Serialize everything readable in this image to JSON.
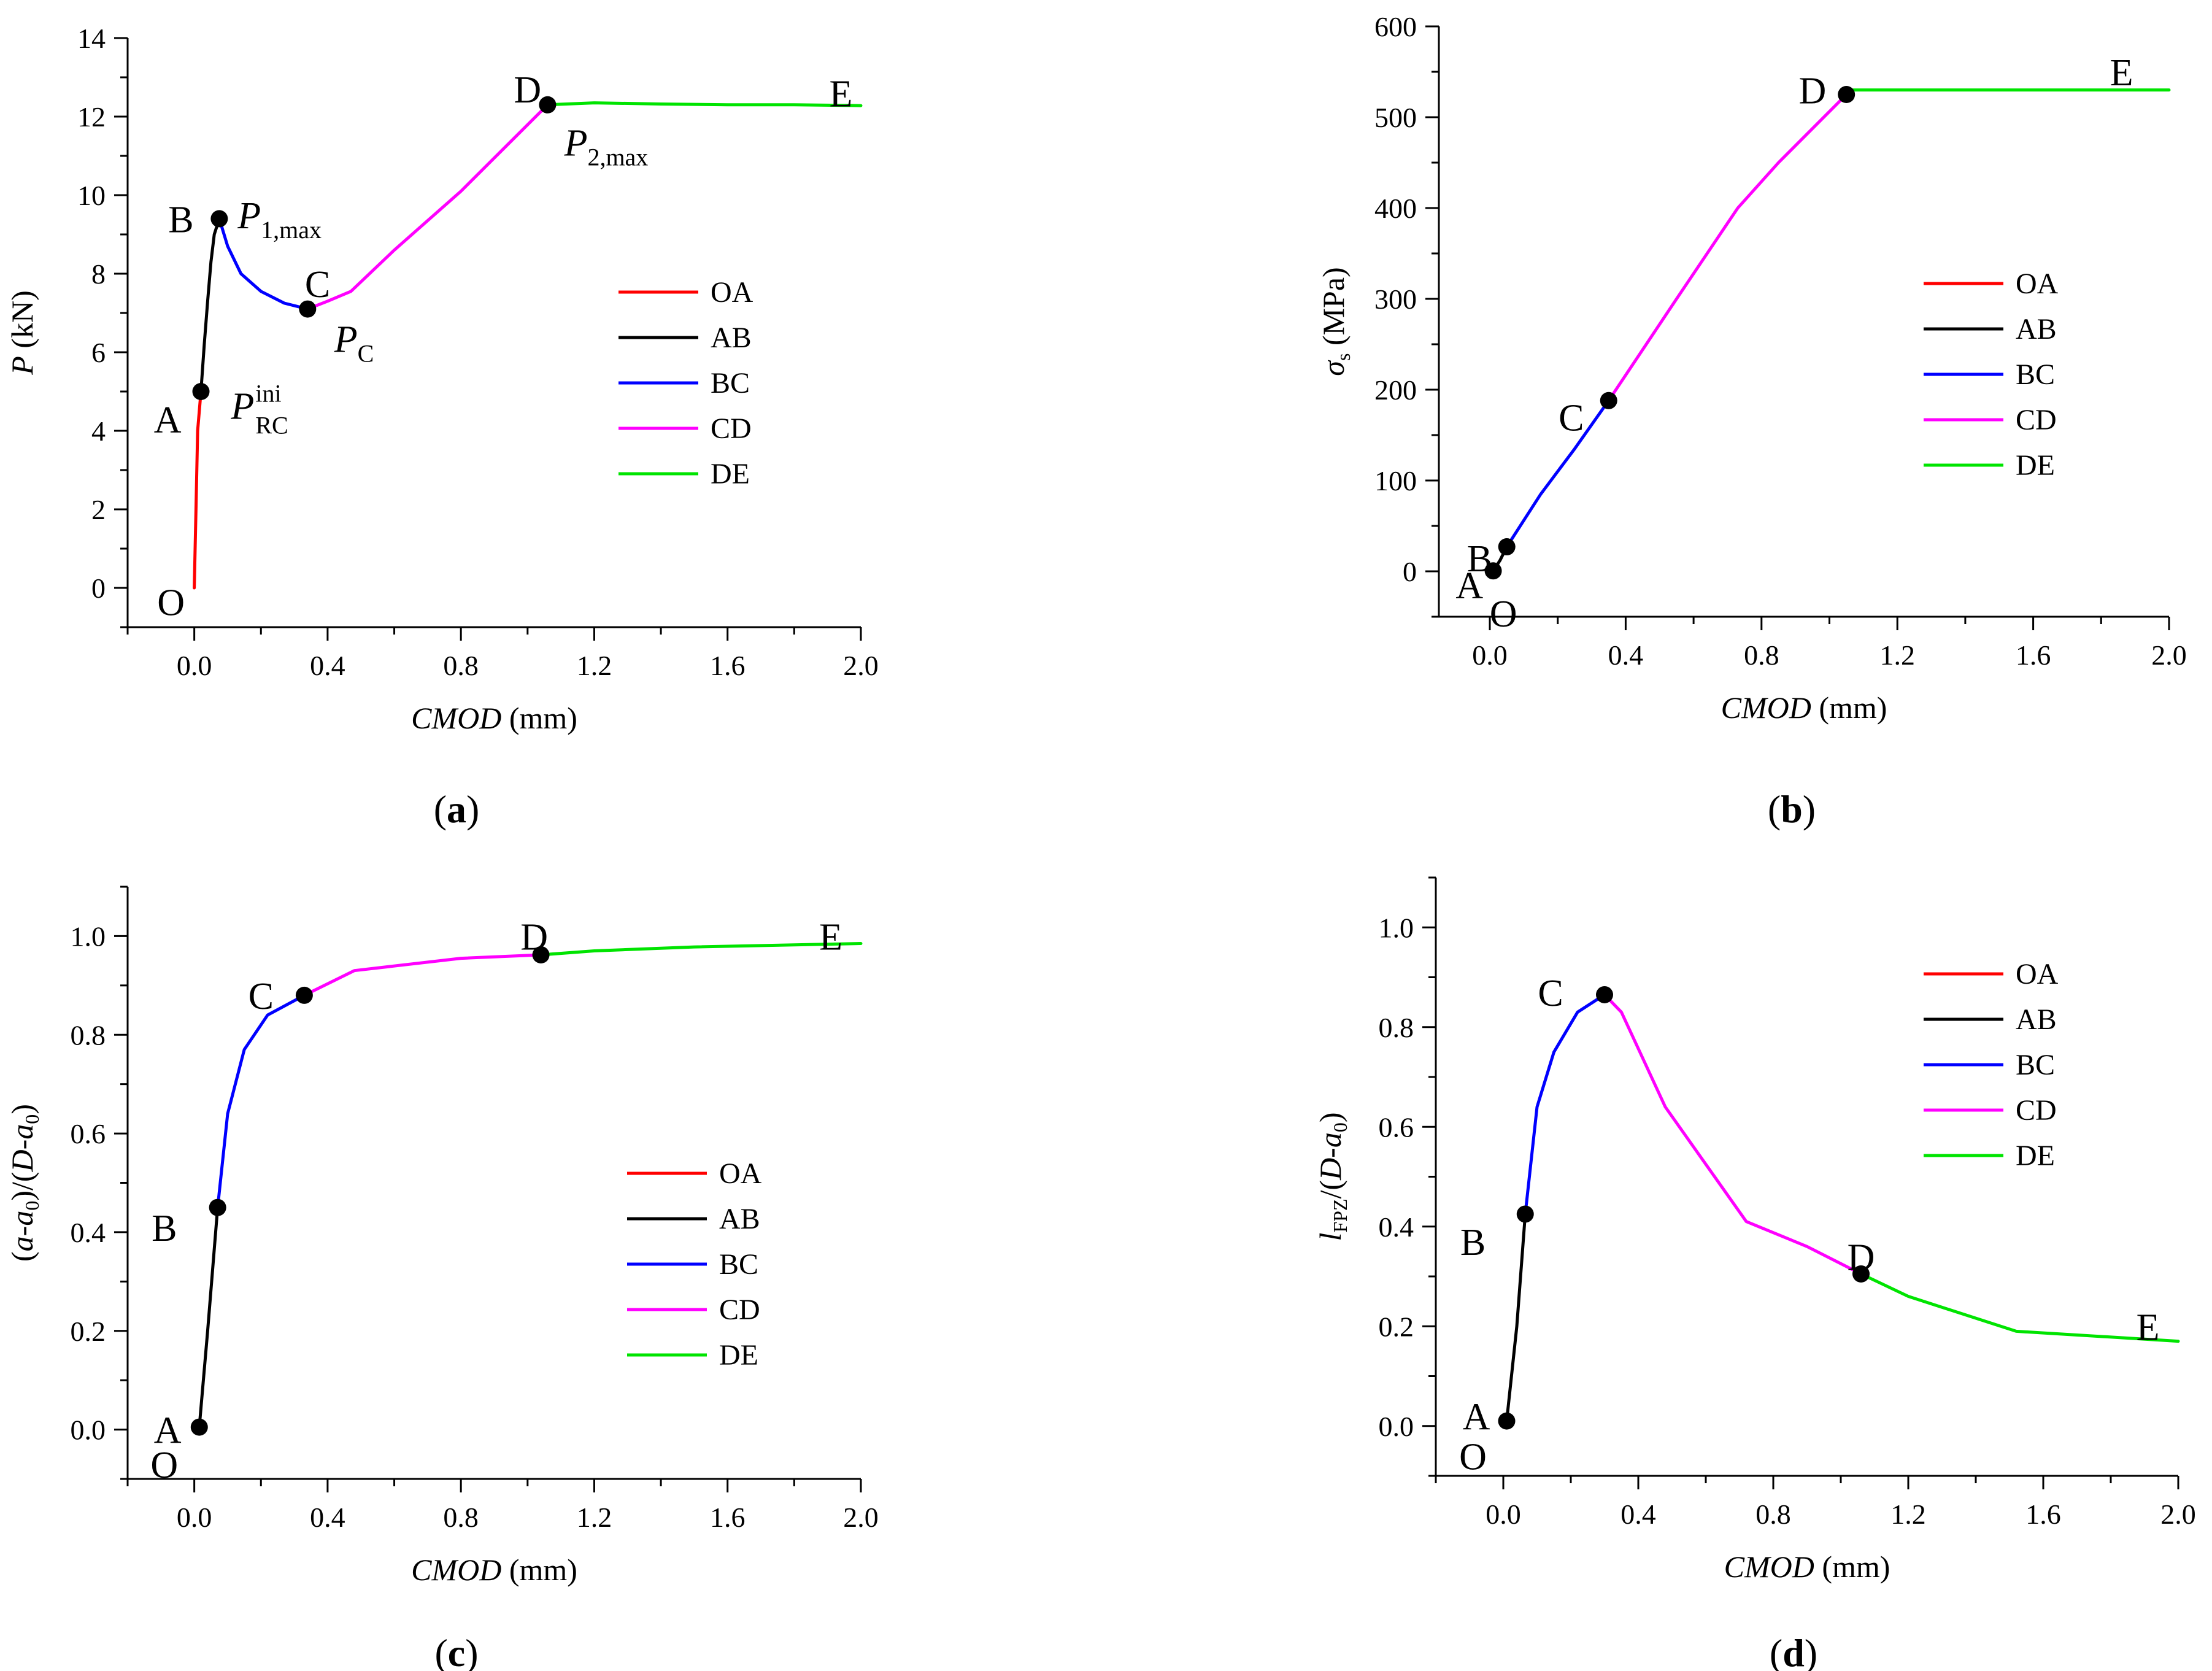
{
  "colors": {
    "OA": "#ff0000",
    "AB": "#000000",
    "BC": "#0000ff",
    "CD": "#ff00ff",
    "DE": "#00e400"
  },
  "chart_data": [
    {
      "type": "line",
      "caption_letter": "a",
      "xlabel_italic": "CMOD",
      "xlabel_unit": " (mm)",
      "ylabel_symbol": "P",
      "ylabel_unit": " (kN)",
      "xlim": [
        -0.2,
        2.0
      ],
      "ylim": [
        -1,
        14
      ],
      "xticks": [
        0.0,
        0.4,
        0.8,
        1.2,
        1.6,
        2.0
      ],
      "xtick_labels": [
        "0.0",
        "0.4",
        "0.8",
        "1.2",
        "1.6",
        "2.0"
      ],
      "yticks": [
        0,
        2,
        4,
        6,
        8,
        10,
        12,
        14
      ],
      "ytick_labels": [
        "0",
        "2",
        "4",
        "6",
        "8",
        "10",
        "12",
        "14"
      ],
      "legend": [
        "OA",
        "AB",
        "BC",
        "CD",
        "DE"
      ],
      "series": [
        {
          "name": "OA",
          "x": [
            0.0,
            0.005,
            0.01,
            0.02
          ],
          "y": [
            0.0,
            2.0,
            4.0,
            5.0
          ]
        },
        {
          "name": "AB",
          "x": [
            0.02,
            0.03,
            0.04,
            0.05,
            0.06,
            0.075
          ],
          "y": [
            5.0,
            6.2,
            7.3,
            8.3,
            9.0,
            9.4
          ]
        },
        {
          "name": "BC",
          "x": [
            0.075,
            0.1,
            0.14,
            0.2,
            0.27,
            0.34
          ],
          "y": [
            9.4,
            8.7,
            8.0,
            7.55,
            7.25,
            7.1
          ]
        },
        {
          "name": "CD",
          "x": [
            0.34,
            0.4,
            0.47,
            0.6,
            0.8,
            1.06
          ],
          "y": [
            7.1,
            7.3,
            7.55,
            8.6,
            10.1,
            12.3
          ]
        },
        {
          "name": "DE",
          "x": [
            1.06,
            1.2,
            1.4,
            1.6,
            1.8,
            2.0
          ],
          "y": [
            12.3,
            12.35,
            12.32,
            12.3,
            12.3,
            12.28
          ]
        }
      ],
      "markers": [
        {
          "name": "A",
          "x": 0.02,
          "y": 5.0
        },
        {
          "name": "B",
          "x": 0.075,
          "y": 9.4
        },
        {
          "name": "C",
          "x": 0.34,
          "y": 7.1
        },
        {
          "name": "D",
          "x": 1.06,
          "y": 12.3
        }
      ],
      "point_labels": [
        {
          "text": "O",
          "x": -0.07,
          "y": -0.35
        },
        {
          "text": "A",
          "x": -0.08,
          "y": 4.3
        },
        {
          "text": "B",
          "x": -0.04,
          "y": 9.4
        },
        {
          "text": "C",
          "x": 0.37,
          "y": 7.75
        },
        {
          "text": "D",
          "x": 1.0,
          "y": 12.7
        },
        {
          "text": "E",
          "x": 1.94,
          "y": 12.6
        }
      ],
      "annotations": [
        {
          "base": "P",
          "sub": "1,max",
          "x": 0.13,
          "y": 9.5
        },
        {
          "base": "P",
          "sub": "C",
          "x": 0.42,
          "y": 6.35
        },
        {
          "base": "P",
          "sub": "RC",
          "sup": "ini",
          "x": 0.11,
          "y": 4.65
        },
        {
          "base": "P",
          "sub": "2,max",
          "x": 1.11,
          "y": 11.35
        }
      ]
    },
    {
      "type": "line",
      "caption_letter": "b",
      "xlabel_italic": "CMOD",
      "xlabel_unit": " (mm)",
      "ylabel_symbol": "σ",
      "ylabel_sub": "s",
      "ylabel_unit": " (MPa)",
      "xlim": [
        -0.15,
        2.0
      ],
      "ylim": [
        -50,
        600
      ],
      "xticks": [
        0.0,
        0.4,
        0.8,
        1.2,
        1.6,
        2.0
      ],
      "xtick_labels": [
        "0.0",
        "0.4",
        "0.8",
        "1.2",
        "1.6",
        "2.0"
      ],
      "yticks": [
        0,
        100,
        200,
        300,
        400,
        500,
        600
      ],
      "ytick_labels": [
        "0",
        "100",
        "200",
        "300",
        "400",
        "500",
        "600"
      ],
      "legend": [
        "OA",
        "AB",
        "BC",
        "CD",
        "DE"
      ],
      "series": [
        {
          "name": "OA",
          "x": [
            0.0,
            0.01
          ],
          "y": [
            0.0,
            0.5
          ]
        },
        {
          "name": "AB",
          "x": [
            0.01,
            0.03,
            0.05
          ],
          "y": [
            0.5,
            12.0,
            27.0
          ]
        },
        {
          "name": "BC",
          "x": [
            0.05,
            0.15,
            0.25,
            0.35
          ],
          "y": [
            27.0,
            85.0,
            135.0,
            188.0
          ]
        },
        {
          "name": "CD",
          "x": [
            0.35,
            0.55,
            0.73,
            0.85,
            1.05
          ],
          "y": [
            188.0,
            300.0,
            400.0,
            450.0,
            525.0
          ]
        },
        {
          "name": "DE",
          "x": [
            1.05,
            1.07,
            1.5,
            2.0
          ],
          "y": [
            525.0,
            530.0,
            530.0,
            530.0
          ]
        }
      ],
      "markers": [
        {
          "name": "A",
          "x": 0.01,
          "y": 0.5
        },
        {
          "name": "B",
          "x": 0.05,
          "y": 27.0
        },
        {
          "name": "C",
          "x": 0.35,
          "y": 188.0
        },
        {
          "name": "D",
          "x": 1.05,
          "y": 525.0
        }
      ],
      "point_labels": [
        {
          "text": "O",
          "x": 0.04,
          "y": -46.0
        },
        {
          "text": "A",
          "x": -0.06,
          "y": -15.0
        },
        {
          "text": "B",
          "x": -0.03,
          "y": 15.0
        },
        {
          "text": "C",
          "x": 0.24,
          "y": 170.0
        },
        {
          "text": "D",
          "x": 0.95,
          "y": 530.0
        },
        {
          "text": "E",
          "x": 1.86,
          "y": 550.0
        }
      ],
      "annotations": []
    },
    {
      "type": "line",
      "caption_letter": "c",
      "xlabel_italic": "CMOD",
      "xlabel_unit": " (mm)",
      "ylabel_text": "(a-a0)/(D-a0)",
      "xlim": [
        -0.2,
        2.0
      ],
      "ylim": [
        -0.1,
        1.1
      ],
      "xticks": [
        0.0,
        0.4,
        0.8,
        1.2,
        1.6,
        2.0
      ],
      "xtick_labels": [
        "0.0",
        "0.4",
        "0.8",
        "1.2",
        "1.6",
        "2.0"
      ],
      "yticks": [
        0.0,
        0.2,
        0.4,
        0.6,
        0.8,
        1.0
      ],
      "ytick_labels": [
        "0.0",
        "0.2",
        "0.4",
        "0.6",
        "0.8",
        "1.0"
      ],
      "legend": [
        "OA",
        "AB",
        "BC",
        "CD",
        "DE"
      ],
      "series": [
        {
          "name": "OA",
          "x": [
            0.0,
            0.015
          ],
          "y": [
            0.0,
            0.005
          ]
        },
        {
          "name": "AB",
          "x": [
            0.015,
            0.04,
            0.07
          ],
          "y": [
            0.005,
            0.2,
            0.45
          ]
        },
        {
          "name": "BC",
          "x": [
            0.07,
            0.1,
            0.15,
            0.22,
            0.33
          ],
          "y": [
            0.45,
            0.64,
            0.77,
            0.84,
            0.88
          ]
        },
        {
          "name": "CD",
          "x": [
            0.33,
            0.48,
            0.8,
            1.04
          ],
          "y": [
            0.88,
            0.93,
            0.955,
            0.962
          ]
        },
        {
          "name": "DE",
          "x": [
            1.04,
            1.2,
            1.5,
            2.0
          ],
          "y": [
            0.962,
            0.97,
            0.978,
            0.985
          ]
        }
      ],
      "markers": [
        {
          "name": "A",
          "x": 0.015,
          "y": 0.005
        },
        {
          "name": "B",
          "x": 0.07,
          "y": 0.45
        },
        {
          "name": "C",
          "x": 0.33,
          "y": 0.88
        },
        {
          "name": "D",
          "x": 1.04,
          "y": 0.962
        }
      ],
      "point_labels": [
        {
          "text": "O",
          "x": -0.09,
          "y": -0.07
        },
        {
          "text": "A",
          "x": -0.08,
          "y": 0.0
        },
        {
          "text": "B",
          "x": -0.09,
          "y": 0.41
        },
        {
          "text": "C",
          "x": 0.2,
          "y": 0.88
        },
        {
          "text": "D",
          "x": 1.02,
          "y": 1.0
        },
        {
          "text": "E",
          "x": 1.91,
          "y": 1.0
        }
      ],
      "annotations": []
    },
    {
      "type": "line",
      "caption_letter": "d",
      "xlabel_italic": "CMOD",
      "xlabel_unit": " (mm)",
      "ylabel_text": "lFPZ/(D-a0)",
      "xlim": [
        -0.2,
        2.0
      ],
      "ylim": [
        -0.1,
        1.1
      ],
      "xticks": [
        0.0,
        0.4,
        0.8,
        1.2,
        1.6,
        2.0
      ],
      "xtick_labels": [
        "0.0",
        "0.4",
        "0.8",
        "1.2",
        "1.6",
        "2.0"
      ],
      "yticks": [
        0.0,
        0.2,
        0.4,
        0.6,
        0.8,
        1.0
      ],
      "ytick_labels": [
        "0.0",
        "0.2",
        "0.4",
        "0.6",
        "0.8",
        "1.0"
      ],
      "legend": [
        "OA",
        "AB",
        "BC",
        "CD",
        "DE"
      ],
      "series": [
        {
          "name": "OA",
          "x": [
            0.0,
            0.01
          ],
          "y": [
            0.0,
            0.01
          ]
        },
        {
          "name": "AB",
          "x": [
            0.01,
            0.04,
            0.065
          ],
          "y": [
            0.01,
            0.2,
            0.425
          ]
        },
        {
          "name": "BC",
          "x": [
            0.065,
            0.1,
            0.15,
            0.22,
            0.3
          ],
          "y": [
            0.425,
            0.64,
            0.75,
            0.83,
            0.865
          ]
        },
        {
          "name": "CD",
          "x": [
            0.3,
            0.35,
            0.48,
            0.72,
            0.9,
            1.06
          ],
          "y": [
            0.865,
            0.83,
            0.64,
            0.41,
            0.36,
            0.305
          ]
        },
        {
          "name": "DE",
          "x": [
            1.06,
            1.2,
            1.52,
            2.0
          ],
          "y": [
            0.305,
            0.26,
            0.19,
            0.17
          ]
        }
      ],
      "markers": [
        {
          "name": "A",
          "x": 0.01,
          "y": 0.01
        },
        {
          "name": "B",
          "x": 0.065,
          "y": 0.425
        },
        {
          "name": "C",
          "x": 0.3,
          "y": 0.865
        },
        {
          "name": "D",
          "x": 1.06,
          "y": 0.305
        }
      ],
      "point_labels": [
        {
          "text": "O",
          "x": -0.09,
          "y": -0.06
        },
        {
          "text": "A",
          "x": -0.08,
          "y": 0.02
        },
        {
          "text": "B",
          "x": -0.09,
          "y": 0.37
        },
        {
          "text": "C",
          "x": 0.14,
          "y": 0.87
        },
        {
          "text": "D",
          "x": 1.06,
          "y": 0.34
        },
        {
          "text": "E",
          "x": 1.91,
          "y": 0.2
        }
      ],
      "annotations": []
    }
  ]
}
